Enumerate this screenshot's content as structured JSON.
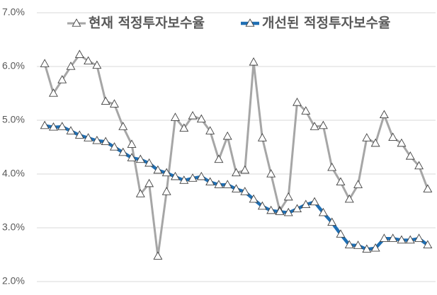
{
  "chart_data": {
    "type": "line",
    "categories": [
      null,
      null,
      null,
      null,
      null,
      null,
      null,
      null,
      null,
      null,
      null,
      null,
      null,
      null,
      null,
      null,
      null,
      null,
      null,
      null,
      null,
      null,
      null,
      null,
      null,
      null,
      null,
      null,
      null,
      null,
      null,
      null,
      null,
      null,
      null,
      null,
      null,
      null,
      null,
      null,
      null,
      null,
      null,
      null,
      null
    ],
    "series": [
      {
        "name": "현재 적정투자보수율",
        "color": "#a6a6a6",
        "values": [
          6.05,
          5.5,
          5.75,
          6.0,
          6.22,
          6.1,
          6.02,
          5.35,
          5.3,
          4.88,
          4.55,
          3.63,
          3.82,
          2.47,
          3.67,
          5.05,
          4.85,
          5.08,
          5.02,
          4.8,
          4.27,
          4.7,
          4.02,
          4.07,
          6.08,
          4.67,
          4.0,
          3.32,
          3.57,
          5.33,
          5.17,
          4.88,
          4.9,
          4.12,
          3.85,
          3.53,
          3.8,
          4.67,
          4.57,
          5.1,
          4.68,
          4.57,
          4.33,
          4.15,
          3.72
        ]
      },
      {
        "name": "개선된 적정투자보수율",
        "color": "#1f6fb4",
        "values": [
          4.9,
          4.87,
          4.88,
          4.8,
          4.72,
          4.67,
          4.62,
          4.6,
          4.5,
          4.4,
          4.3,
          4.27,
          4.2,
          4.07,
          4.02,
          3.95,
          3.88,
          3.92,
          3.95,
          3.85,
          3.8,
          3.8,
          3.72,
          3.67,
          3.53,
          3.4,
          3.32,
          3.3,
          3.28,
          3.35,
          3.43,
          3.48,
          3.28,
          3.1,
          2.88,
          2.68,
          2.67,
          2.6,
          2.62,
          2.8,
          2.8,
          2.77,
          2.77,
          2.8,
          2.68
        ]
      }
    ],
    "ylim": [
      2,
      7
    ],
    "yticks": [
      {
        "value": 2,
        "label": "2.0%"
      },
      {
        "value": 3,
        "label": "3.0%"
      },
      {
        "value": 4,
        "label": "4.0%"
      },
      {
        "value": 5,
        "label": "5.0%"
      },
      {
        "value": 6,
        "label": "6.0%"
      },
      {
        "value": 7,
        "label": "7.0%"
      }
    ],
    "grid": true
  }
}
